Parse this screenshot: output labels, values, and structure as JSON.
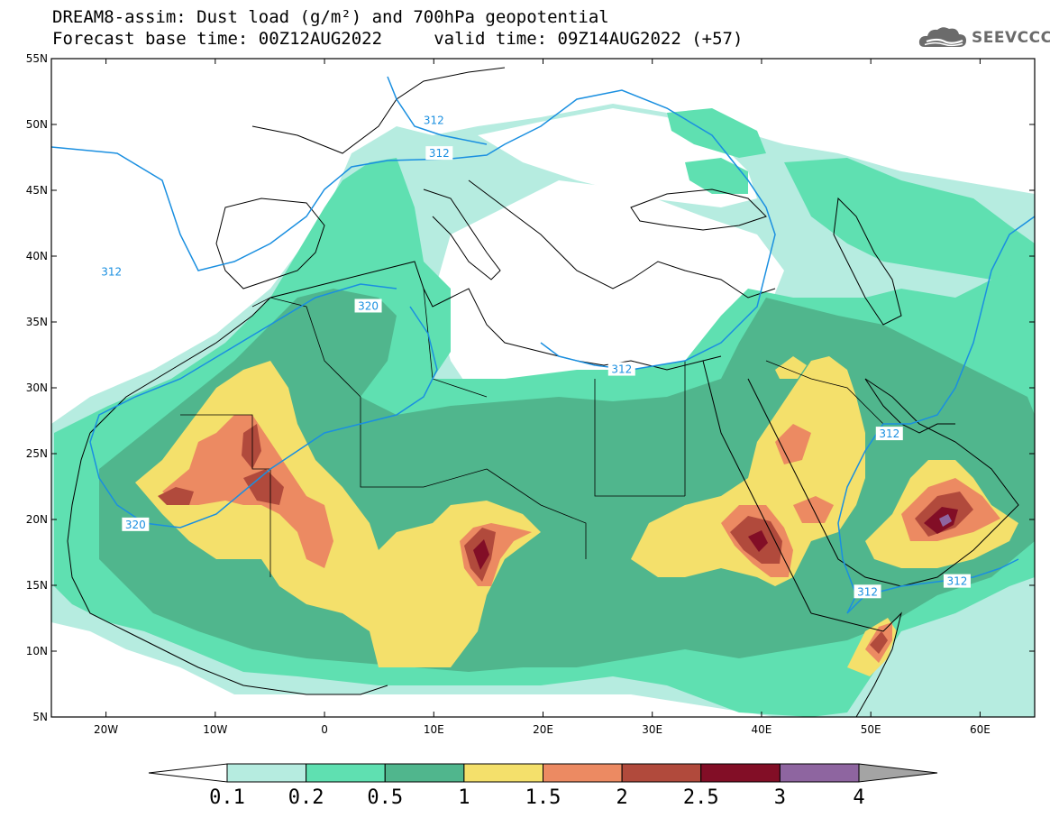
{
  "header": {
    "title_line1": "DREAM8-assim: Dust load (g/m²) and 700hPa geopotential",
    "title_line2": "Forecast base time: 00Z12AUG2022     valid time: 09Z14AUG2022 (+57)"
  },
  "logo": {
    "text": "SEEVCCC",
    "icon": "cloud-logo-icon"
  },
  "map": {
    "extent": {
      "lon_min": -25,
      "lon_max": 65,
      "lat_min": 5,
      "lat_max": 55
    },
    "lat_ticks": [
      {
        "value": 55,
        "label": "55N"
      },
      {
        "value": 50,
        "label": "50N"
      },
      {
        "value": 45,
        "label": "45N"
      },
      {
        "value": 40,
        "label": "40N"
      },
      {
        "value": 35,
        "label": "35N"
      },
      {
        "value": 30,
        "label": "30N"
      },
      {
        "value": 25,
        "label": "25N"
      },
      {
        "value": 20,
        "label": "20N"
      },
      {
        "value": 15,
        "label": "15N"
      },
      {
        "value": 10,
        "label": "10N"
      },
      {
        "value": 5,
        "label": "5N"
      }
    ],
    "lon_ticks": [
      {
        "value": -20,
        "label": "20W"
      },
      {
        "value": -10,
        "label": "10W"
      },
      {
        "value": 0,
        "label": "0"
      },
      {
        "value": 10,
        "label": "10E"
      },
      {
        "value": 20,
        "label": "20E"
      },
      {
        "value": 30,
        "label": "30E"
      },
      {
        "value": 40,
        "label": "40E"
      },
      {
        "value": 50,
        "label": "50E"
      },
      {
        "value": 60,
        "label": "60E"
      }
    ],
    "contour_color": "#1a8fe0",
    "contour_labels": [
      {
        "text": "312",
        "lon": -19.5,
        "lat": 38.8
      },
      {
        "text": "312",
        "lon": 10.0,
        "lat": 50.3
      },
      {
        "text": "312",
        "lon": 10.5,
        "lat": 47.8
      },
      {
        "text": "320",
        "lon": 4.0,
        "lat": 36.2
      },
      {
        "text": "320",
        "lon": -17.3,
        "lat": 19.6
      },
      {
        "text": "312",
        "lon": 27.2,
        "lat": 31.4
      },
      {
        "text": "312",
        "lon": 51.7,
        "lat": 26.5
      },
      {
        "text": "312",
        "lon": 49.7,
        "lat": 14.5
      },
      {
        "text": "312",
        "lon": 57.9,
        "lat": 15.3
      }
    ]
  },
  "colorbar": {
    "colors": [
      "#ffffff",
      "#b6ece0",
      "#5fe0b1",
      "#50b68d",
      "#f4e06b",
      "#ec8a62",
      "#b14a3c",
      "#820e26",
      "#8e65a0",
      "#a4a4a4"
    ],
    "labels": [
      "0.1",
      "0.2",
      "0.5",
      "1",
      "1.5",
      "2",
      "2.5",
      "3",
      "4"
    ]
  }
}
